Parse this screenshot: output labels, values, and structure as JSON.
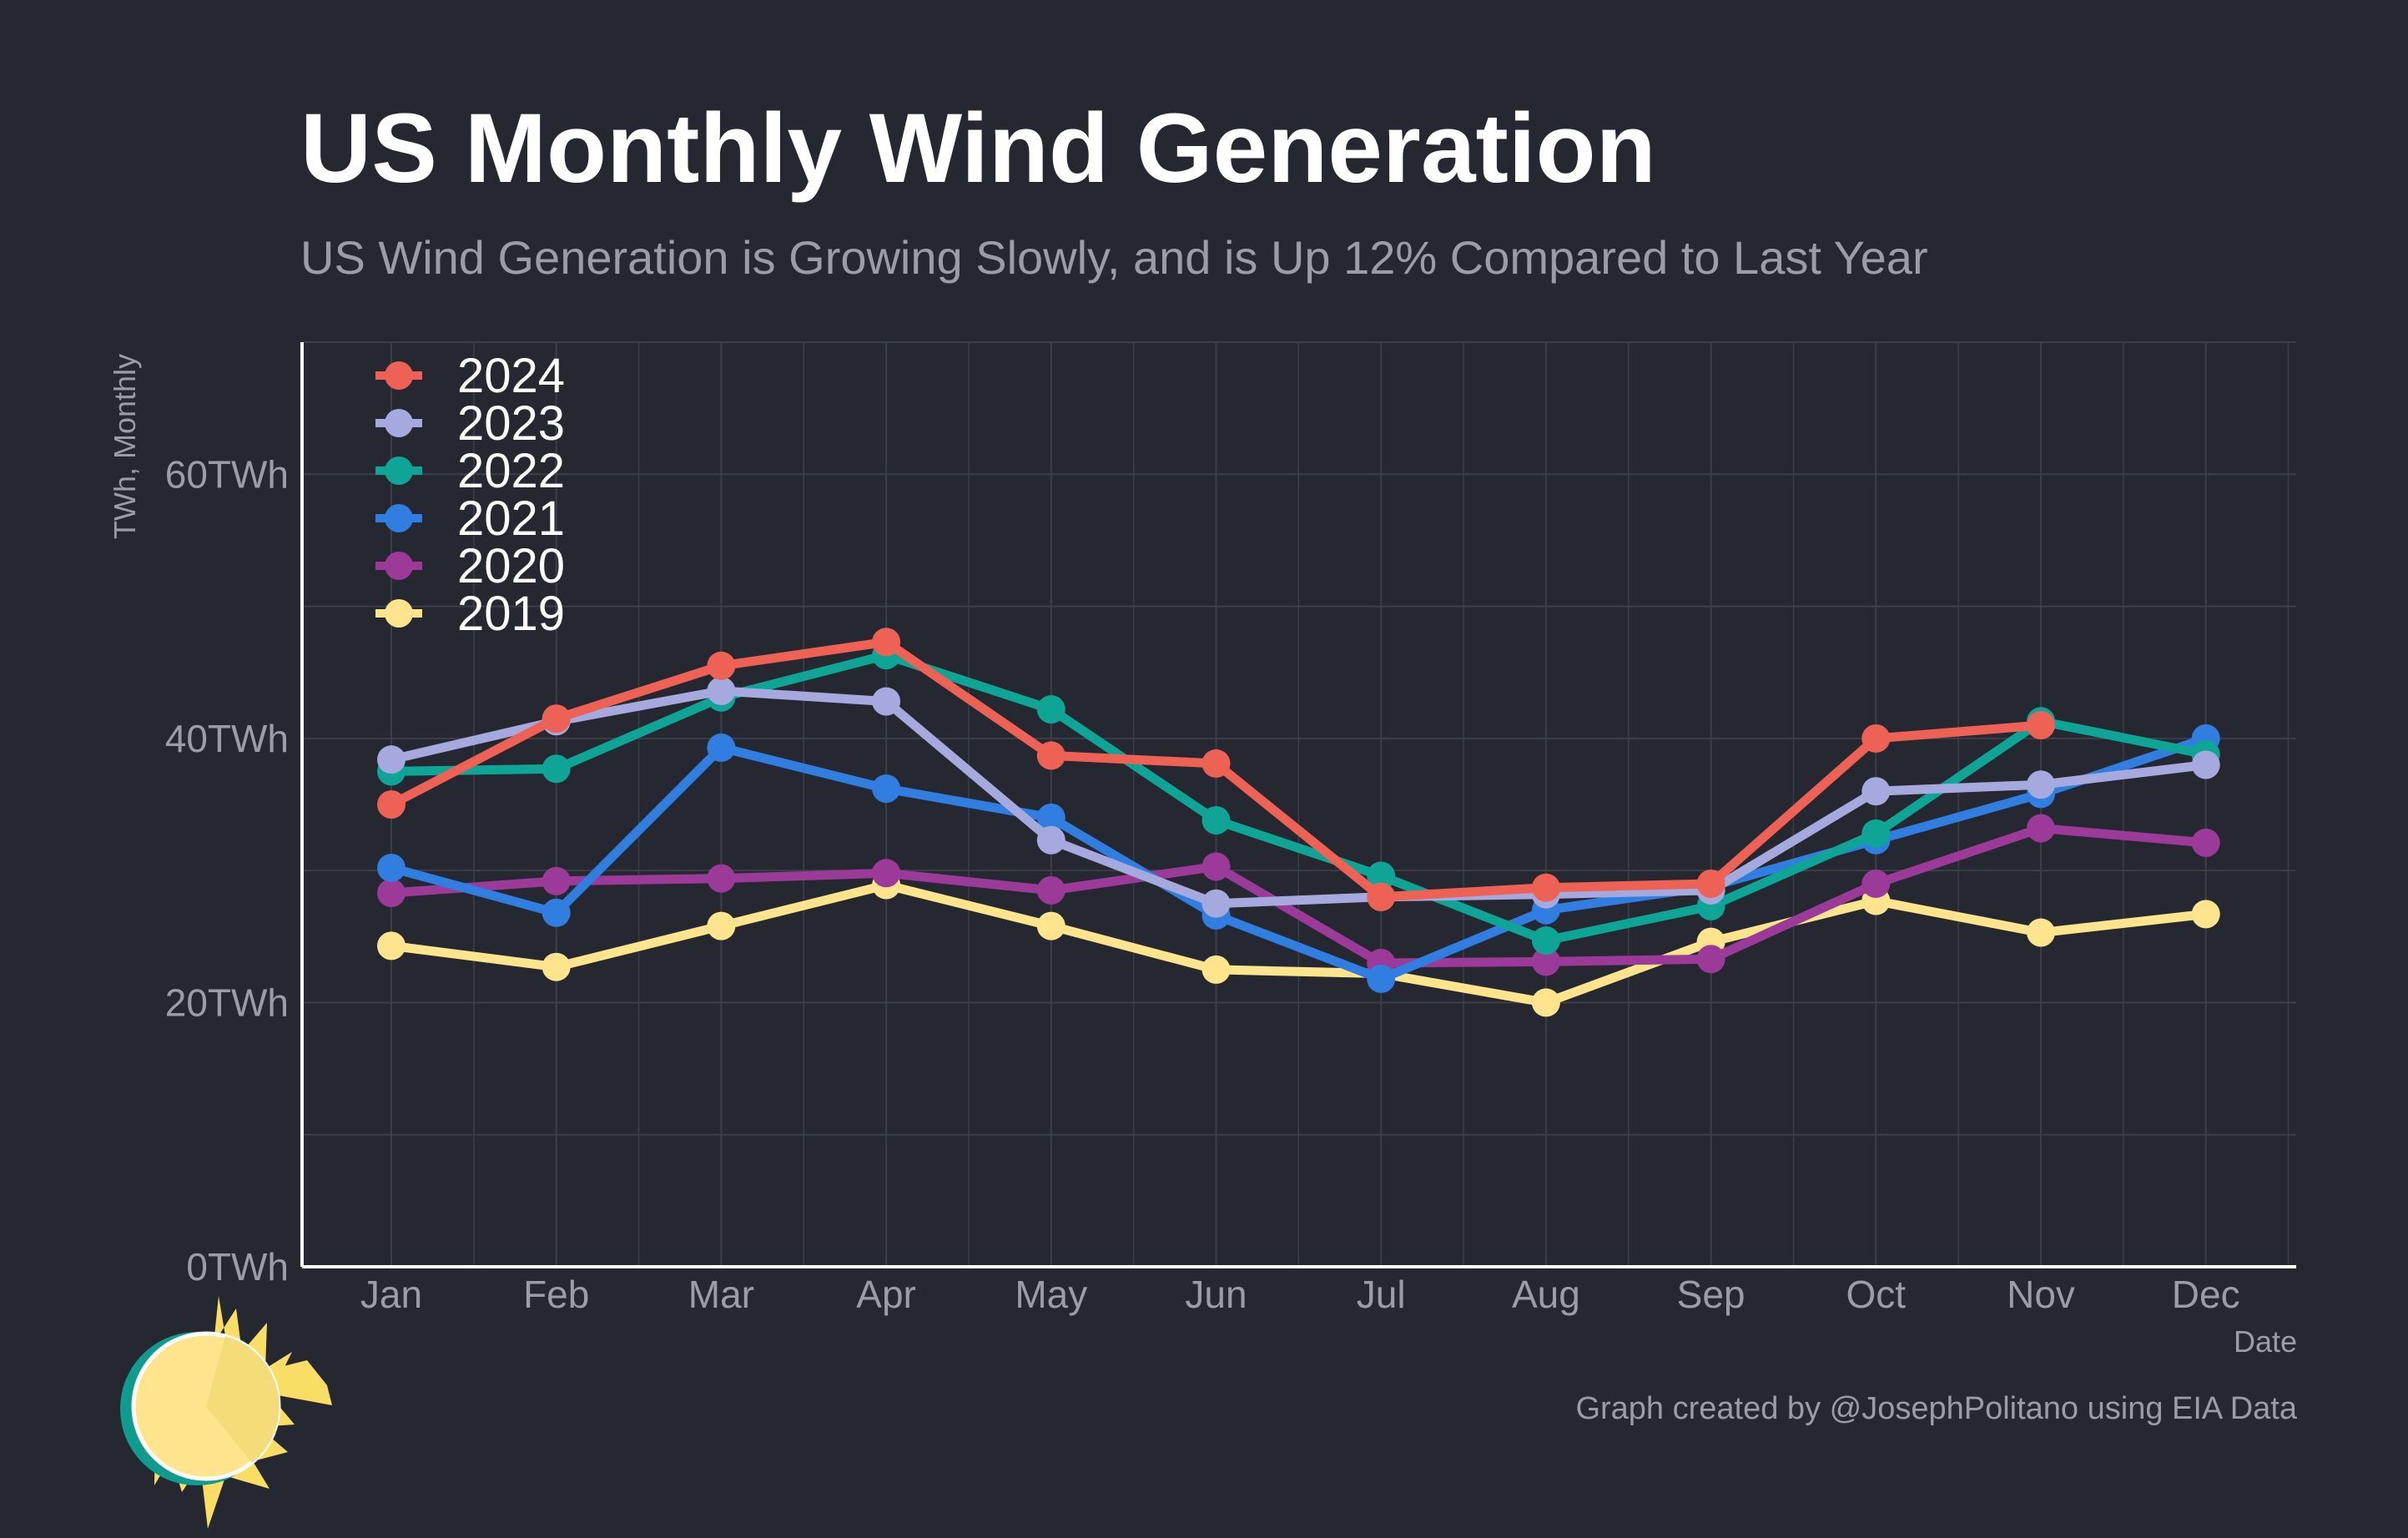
{
  "title": "US Monthly Wind Generation",
  "subtitle": "US Wind Generation is Growing Slowly, and is Up 12% Compared to Last Year",
  "caption": "Graph created by @JosephPolitano using EIA Data",
  "colors": {
    "background": "#252830",
    "grid": "#3b3f48",
    "axis_line": "#ffffff",
    "muted_text": "#9a9da5",
    "title_text": "#ffffff"
  },
  "logo": {
    "name": "sun-logo",
    "colors": {
      "ring": "#0f9b8e",
      "face": "#fee48d",
      "face_shade": "#f4dc78",
      "rays": "#f9dd64"
    }
  },
  "chart_data": {
    "type": "line",
    "title": "US Monthly Wind Generation",
    "subtitle": "US Wind Generation is Growing Slowly, and is Up 12% Compared to Last Year",
    "xlabel": "Date",
    "ylabel": "TWh, Monthly",
    "categories": [
      "Jan",
      "Feb",
      "Mar",
      "Apr",
      "May",
      "Jun",
      "Jul",
      "Aug",
      "Sep",
      "Oct",
      "Nov",
      "Dec"
    ],
    "ylim": [
      0,
      70
    ],
    "yticks": [
      0,
      20,
      40,
      60
    ],
    "ytick_labels": [
      "0TWh",
      "20TWh",
      "40TWh",
      "60TWh"
    ],
    "grid": true,
    "legend_position": "top-left",
    "series": [
      {
        "name": "2024",
        "color": "#ee6155",
        "values": [
          35.0,
          41.5,
          45.5,
          47.3,
          38.7,
          38.1,
          28.0,
          28.7,
          29.0,
          40.0,
          41.0,
          null
        ]
      },
      {
        "name": "2023",
        "color": "#a6a9de",
        "values": [
          38.4,
          41.3,
          43.6,
          42.8,
          32.3,
          27.5,
          28.0,
          28.2,
          28.5,
          36.0,
          36.5,
          38.0
        ]
      },
      {
        "name": "2022",
        "color": "#0ea597",
        "values": [
          37.5,
          37.7,
          43.1,
          46.3,
          42.2,
          33.8,
          29.6,
          24.7,
          27.3,
          32.8,
          41.3,
          38.8
        ]
      },
      {
        "name": "2021",
        "color": "#2f7ee0",
        "values": [
          30.2,
          26.8,
          39.3,
          36.2,
          34.0,
          26.6,
          21.8,
          27.0,
          28.8,
          32.3,
          35.8,
          40.0
        ]
      },
      {
        "name": "2020",
        "color": "#9b3a98",
        "values": [
          28.3,
          29.2,
          29.4,
          29.8,
          28.5,
          30.3,
          23.0,
          23.1,
          23.3,
          29.0,
          33.2,
          32.1
        ]
      },
      {
        "name": "2019",
        "color": "#fee48d",
        "values": [
          24.3,
          22.7,
          25.8,
          28.9,
          25.8,
          22.5,
          22.2,
          20.0,
          24.6,
          27.7,
          25.3,
          26.7
        ]
      }
    ]
  }
}
